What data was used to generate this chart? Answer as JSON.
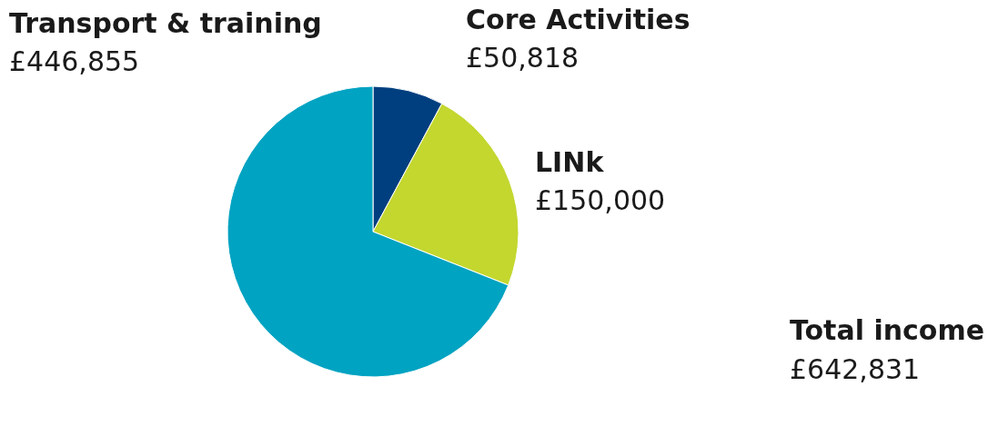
{
  "chart_data": {
    "type": "pie",
    "categories": [
      "Core Activities",
      "LINk",
      "Transport & training"
    ],
    "values": [
      50818,
      150000,
      446855
    ],
    "value_labels": [
      "£50,818",
      "£150,000",
      "£446,855"
    ],
    "colors": [
      "#003f7f",
      "#c3d72f",
      "#00a3c2"
    ],
    "annotations": [
      "Total income",
      "£642,831"
    ]
  }
}
